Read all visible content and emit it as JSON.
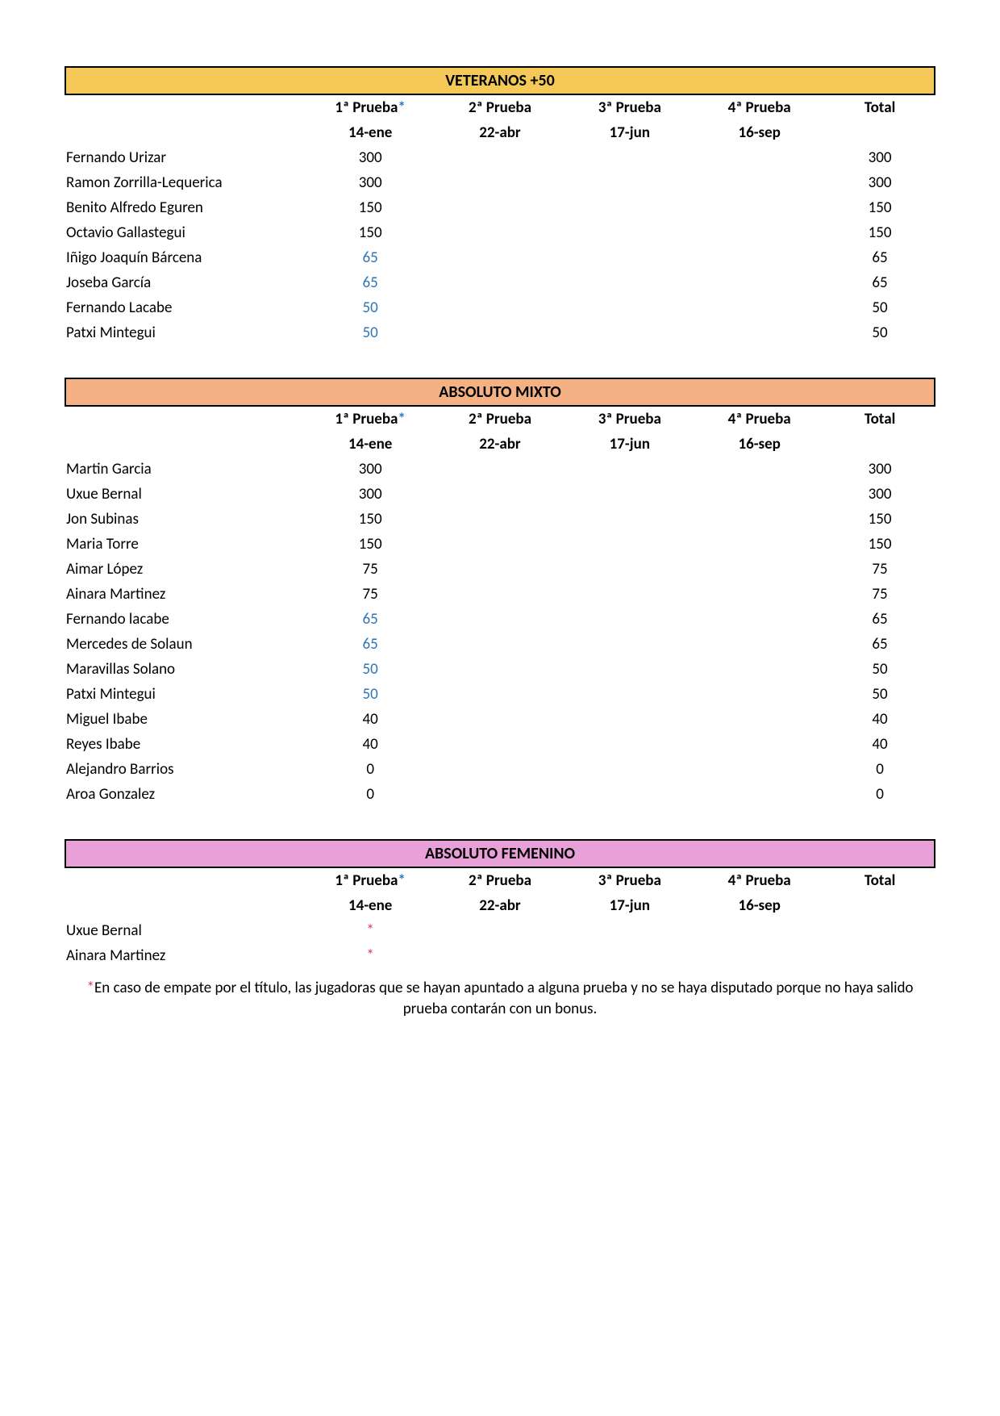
{
  "colors": {
    "veteranos_bg": "#f4c957",
    "mixto_bg": "#f4b183",
    "femenino_bg": "#e8a0d8",
    "text": "#000000",
    "blue_value": "#2e75b6",
    "pink_asterisk": "#d63384",
    "border": "#000000",
    "page_bg": "#ffffff"
  },
  "typography": {
    "base_family": "Calibri, Arial, sans-serif",
    "title_fontsize": 20,
    "cell_fontsize": 19,
    "title_weight": "bold",
    "header_weight": "bold"
  },
  "headers": {
    "p1": "1ª Prueba",
    "p1_mark": "*",
    "p2": "2ª Prueba",
    "p3": "3ª Prueba",
    "p4": "4ª Prueba",
    "total": "Total",
    "d1": "14-ene",
    "d2": "22-abr",
    "d3": "17-jun",
    "d4": "16-sep"
  },
  "veteranos": {
    "title": "VETERANOS +50",
    "rows": [
      {
        "name": "Fernando Urizar",
        "p1": "300",
        "p1_blue": false,
        "total": "300"
      },
      {
        "name": "Ramon Zorrilla-Lequerica",
        "p1": "300",
        "p1_blue": false,
        "total": "300"
      },
      {
        "name": "Benito Alfredo Eguren",
        "p1": "150",
        "p1_blue": false,
        "total": "150"
      },
      {
        "name": "Octavio Gallastegui",
        "p1": "150",
        "p1_blue": false,
        "total": "150"
      },
      {
        "name": "Iñigo Joaquín Bárcena",
        "p1": "65",
        "p1_blue": true,
        "total": "65"
      },
      {
        "name": "Joseba García",
        "p1": "65",
        "p1_blue": true,
        "total": "65"
      },
      {
        "name": "Fernando Lacabe",
        "p1": "50",
        "p1_blue": true,
        "total": "50"
      },
      {
        "name": "Patxi Mintegui",
        "p1": "50",
        "p1_blue": true,
        "total": "50"
      }
    ]
  },
  "mixto": {
    "title": "ABSOLUTO MIXTO",
    "rows": [
      {
        "name": "Martin Garcia",
        "p1": "300",
        "p1_blue": false,
        "total": "300"
      },
      {
        "name": "Uxue Bernal",
        "p1": "300",
        "p1_blue": false,
        "total": "300"
      },
      {
        "name": "Jon Subinas",
        "p1": "150",
        "p1_blue": false,
        "total": "150"
      },
      {
        "name": "Maria Torre",
        "p1": "150",
        "p1_blue": false,
        "total": "150"
      },
      {
        "name": "Aimar López",
        "p1": "75",
        "p1_blue": false,
        "total": "75"
      },
      {
        "name": "Ainara Martinez",
        "p1": "75",
        "p1_blue": false,
        "total": "75"
      },
      {
        "name": "Fernando lacabe",
        "p1": "65",
        "p1_blue": true,
        "total": "65"
      },
      {
        "name": "Mercedes de Solaun",
        "p1": "65",
        "p1_blue": true,
        "total": "65"
      },
      {
        "name": "Maravillas Solano",
        "p1": "50",
        "p1_blue": true,
        "total": "50"
      },
      {
        "name": "Patxi Mintegui",
        "p1": "50",
        "p1_blue": true,
        "total": "50"
      },
      {
        "name": "Miguel Ibabe",
        "p1": "40",
        "p1_blue": false,
        "total": "40"
      },
      {
        "name": "Reyes Ibabe",
        "p1": "40",
        "p1_blue": false,
        "total": "40"
      },
      {
        "name": "Alejandro Barrios",
        "p1": "0",
        "p1_blue": false,
        "total": "0"
      },
      {
        "name": "Aroa Gonzalez",
        "p1": "0",
        "p1_blue": false,
        "total": "0"
      }
    ]
  },
  "femenino": {
    "title": "ABSOLUTO FEMENINO",
    "rows": [
      {
        "name": "Uxue Bernal",
        "p1": "*",
        "p1_pink": true,
        "total": ""
      },
      {
        "name": "Ainara Martinez",
        "p1": "*",
        "p1_pink": true,
        "total": ""
      }
    ]
  },
  "footnote": {
    "mark": "*",
    "text": "En caso de empate por el título, las jugadoras que se hayan apuntado a alguna prueba y no se haya disputado porque no haya salido prueba contarán con un bonus."
  }
}
